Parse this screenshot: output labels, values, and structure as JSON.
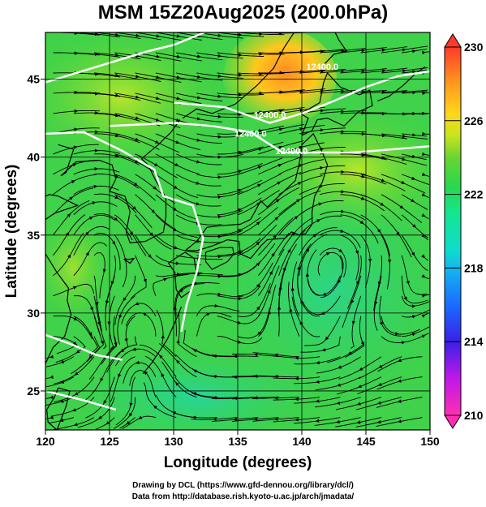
{
  "header": {
    "title": "MSM 15Z20Aug2025 (200.0hPa)"
  },
  "map": {
    "type": "filled-contour-streamline-map",
    "lon_range": [
      120,
      150
    ],
    "lat_range": [
      22.5,
      48
    ],
    "x_axis": {
      "label": "Longitude (degrees)",
      "ticks": [
        120,
        125,
        130,
        135,
        140,
        145,
        150
      ],
      "tick_labels": [
        "120",
        "125",
        "130",
        "135",
        "140",
        "145",
        "150"
      ]
    },
    "y_axis": {
      "label": "Latitude  (degrees)",
      "ticks": [
        25,
        30,
        35,
        40,
        45
      ],
      "tick_labels": [
        "25",
        "30",
        "35",
        "40",
        "45"
      ]
    },
    "grid": true,
    "contour_labels": [
      {
        "text": "12400.0",
        "lon": 137.5,
        "lat": 42.5
      },
      {
        "text": "12400.0",
        "lon": 136.0,
        "lat": 41.3
      },
      {
        "text": "12400.0",
        "lon": 139.2,
        "lat": 40.2
      },
      {
        "text": "12400.0",
        "lon": 141.6,
        "lat": 45.6
      }
    ],
    "colorbar": {
      "min": 210,
      "max": 230,
      "tick_values": [
        230,
        226,
        222,
        218,
        214,
        210
      ],
      "tick_labels": [
        "230",
        "226",
        "222",
        "218",
        "214",
        "210"
      ],
      "colors": [
        "#ff2fb2",
        "#c018e8",
        "#7a10e8",
        "#2040f0",
        "#1a78ff",
        "#12b8ee",
        "#10dccc",
        "#14e690",
        "#22dc5a",
        "#3ed23a",
        "#8cd92a",
        "#d8e51a",
        "#ffd21a",
        "#ff9a1e",
        "#ff5a26",
        "#ff3030"
      ]
    },
    "colors": {
      "temperature_field_base": "#3fd24a",
      "warm_patch": "#ff9c1e",
      "cool_patch": "#1fd6a8",
      "coastline": "#000000",
      "streamline": "#000000",
      "contour": "#ffffff"
    }
  },
  "footer": {
    "line1": "Drawing by DCL (https://www.gfd-dennou.org/library/dcl/)",
    "line2": "Data from http://database.rish.kyoto-u.ac.jp/arch/jmadata/"
  }
}
